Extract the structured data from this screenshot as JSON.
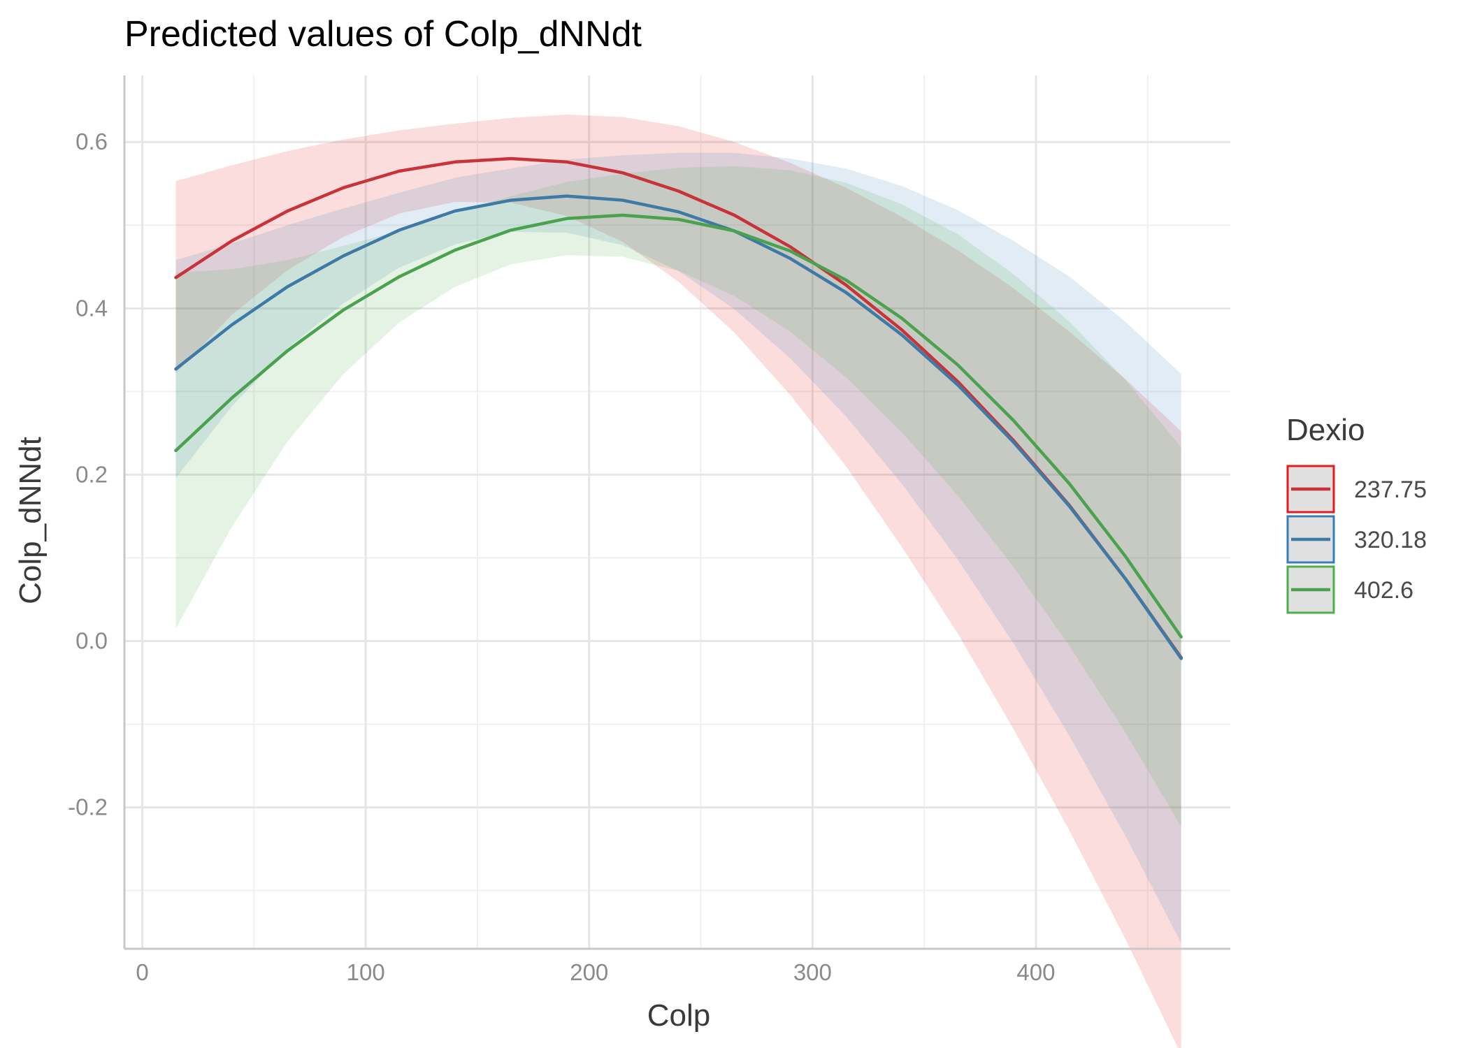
{
  "chart_data": {
    "type": "line",
    "title": "Predicted values of Colp_dNNdt",
    "xlabel": "Colp",
    "ylabel": "Colp_dNNdt",
    "xlim": [
      -8,
      487
    ],
    "ylim": [
      -0.37,
      0.68
    ],
    "x_ticks": [
      0,
      100,
      200,
      300,
      400
    ],
    "x_tick_labels": [
      "0",
      "100",
      "200",
      "300",
      "400"
    ],
    "y_ticks": [
      -0.2,
      0.0,
      0.2,
      0.4,
      0.6
    ],
    "y_tick_labels": [
      "-0.2",
      "0.0",
      "0.2",
      "0.4",
      "0.6"
    ],
    "grid": true,
    "legend": {
      "title": "Dexio",
      "position": "right"
    },
    "x": [
      15,
      40,
      65,
      90,
      115,
      140,
      165,
      190,
      215,
      240,
      265,
      290,
      315,
      340,
      365,
      390,
      415,
      440,
      465
    ],
    "series": [
      {
        "name": "237.75",
        "color": "#e41a1c",
        "line_color": "#c8333a",
        "values": [
          0.437,
          0.481,
          0.517,
          0.545,
          0.565,
          0.576,
          0.58,
          0.576,
          0.563,
          0.541,
          0.512,
          0.474,
          0.428,
          0.374,
          0.312,
          0.241,
          0.163,
          0.075,
          -0.02
        ],
        "lower": [
          0.322,
          0.392,
          0.446,
          0.486,
          0.514,
          0.528,
          0.527,
          0.511,
          0.48,
          0.432,
          0.371,
          0.296,
          0.21,
          0.113,
          0.009,
          -0.106,
          -0.228,
          -0.358,
          -0.497
        ],
        "upper": [
          0.553,
          0.572,
          0.589,
          0.603,
          0.614,
          0.622,
          0.629,
          0.633,
          0.63,
          0.619,
          0.6,
          0.575,
          0.545,
          0.51,
          0.47,
          0.424,
          0.372,
          0.315,
          0.252
        ]
      },
      {
        "name": "320.18",
        "color": "#377eb8",
        "line_color": "#3e7aa6",
        "values": [
          0.327,
          0.38,
          0.426,
          0.463,
          0.494,
          0.517,
          0.53,
          0.535,
          0.53,
          0.516,
          0.493,
          0.46,
          0.419,
          0.368,
          0.308,
          0.239,
          0.162,
          0.075,
          -0.021
        ],
        "lower": [
          0.196,
          0.282,
          0.352,
          0.406,
          0.449,
          0.477,
          0.492,
          0.491,
          0.476,
          0.445,
          0.399,
          0.34,
          0.27,
          0.189,
          0.098,
          -0.003,
          -0.114,
          -0.234,
          -0.363
        ],
        "upper": [
          0.458,
          0.478,
          0.5,
          0.52,
          0.539,
          0.557,
          0.568,
          0.579,
          0.584,
          0.587,
          0.587,
          0.58,
          0.568,
          0.547,
          0.518,
          0.481,
          0.438,
          0.384,
          0.321
        ]
      },
      {
        "name": "402.6",
        "color": "#4daf4a",
        "line_color": "#4aa24e",
        "values": [
          0.229,
          0.292,
          0.349,
          0.398,
          0.438,
          0.47,
          0.494,
          0.508,
          0.512,
          0.507,
          0.493,
          0.469,
          0.434,
          0.388,
          0.332,
          0.265,
          0.189,
          0.102,
          0.005
        ],
        "lower": [
          0.015,
          0.137,
          0.24,
          0.321,
          0.383,
          0.426,
          0.453,
          0.464,
          0.462,
          0.445,
          0.415,
          0.372,
          0.317,
          0.251,
          0.175,
          0.089,
          -0.006,
          -0.11,
          -0.223
        ],
        "upper": [
          0.443,
          0.447,
          0.458,
          0.475,
          0.493,
          0.514,
          0.535,
          0.552,
          0.562,
          0.569,
          0.571,
          0.566,
          0.551,
          0.525,
          0.489,
          0.441,
          0.384,
          0.314,
          0.233
        ]
      }
    ]
  }
}
